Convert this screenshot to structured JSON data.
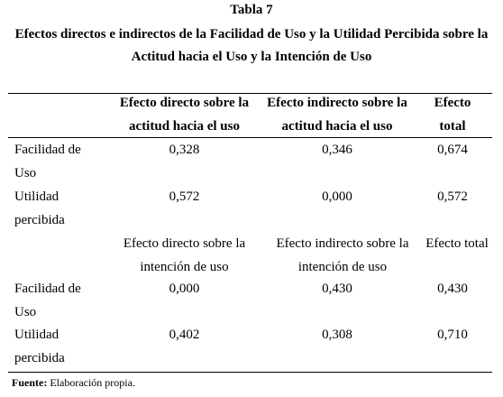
{
  "table": {
    "label": "Tabla 7",
    "caption_line1": "Efectos directos e indirectos de la Facilidad de Uso y la Utilidad Percibida sobre la",
    "caption_line2": "Actitud hacia el Uso y la Intención de Uso",
    "header1": {
      "col1": "Efecto directo sobre la actitud hacia el uso",
      "col2": "Efecto indirecto sobre la actitud hacia el uso",
      "col3": "Efecto total"
    },
    "rows1": [
      {
        "label": "Facilidad de Uso",
        "direct": "0,328",
        "indirect": "0,346",
        "total": "0,674"
      },
      {
        "label": "Utilidad percibida",
        "direct": "0,572",
        "indirect": "0,000",
        "total": "0,572"
      }
    ],
    "header2": {
      "col1": "Efecto directo sobre la intención de uso",
      "col2": "Efecto indirecto sobre la intención de uso",
      "col3": "Efecto total"
    },
    "rows2": [
      {
        "label": "Facilidad de Uso",
        "direct": "0,000",
        "indirect": "0,430",
        "total": "0,430"
      },
      {
        "label": "Utilidad percibida",
        "direct": "0,402",
        "indirect": "0,308",
        "total": "0,710"
      }
    ]
  },
  "footer": {
    "source_label": "Fuente:",
    "source_text": "Elaboración  propia."
  }
}
